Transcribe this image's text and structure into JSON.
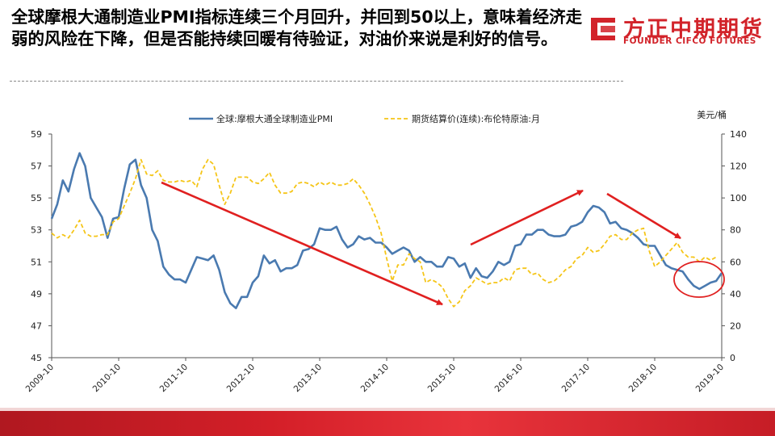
{
  "title": "全球摩根大通制造业PMI指标连续三个月回升，并回到50以上，意味着经济走弱的风险在下降，但是否能持续回暖有待验证，对油价来说是利好的信号。",
  "logo": {
    "cn": "方正中期期货",
    "en": "FOUNDER CIFCO FUTURES"
  },
  "colors": {
    "pmi": "#4a7ab0",
    "brent": "#f5c518",
    "arrow": "#e02020",
    "brand": "#d2232a"
  },
  "chart_data": {
    "type": "line",
    "legend": [
      "全球:摩根大通全球制造业PMI",
      "期货结算价(连续):布伦特原油:月"
    ],
    "legend_position": "top",
    "right_axis_unit": "美元/桶",
    "x_ticks": [
      "2009-10",
      "2010-10",
      "2011-10",
      "2012-10",
      "2013-10",
      "2014-10",
      "2015-10",
      "2016-10",
      "2017-10",
      "2018-10",
      "2019-10"
    ],
    "x_start": "2009-10",
    "y_left": {
      "range": [
        45,
        59
      ],
      "ticks": [
        "45",
        "47",
        "49",
        "51",
        "53",
        "55",
        "57",
        "59"
      ]
    },
    "y_right": {
      "range": [
        0,
        140
      ],
      "ticks": [
        "0",
        "20",
        "40",
        "60",
        "80",
        "100",
        "120",
        "140"
      ]
    },
    "grid": false,
    "series": [
      {
        "name": "全球:摩根大通全球制造业PMI",
        "axis": "left",
        "style": "solid",
        "values": [
          53.7,
          54.6,
          56.1,
          55.4,
          56.8,
          57.8,
          57.0,
          55.0,
          54.4,
          53.8,
          52.5,
          53.7,
          53.8,
          55.6,
          57.1,
          57.4,
          55.8,
          55.0,
          53.0,
          52.3,
          50.7,
          50.2,
          49.9,
          49.9,
          49.7,
          50.5,
          51.3,
          51.2,
          51.1,
          51.4,
          50.5,
          49.1,
          48.4,
          48.1,
          48.8,
          48.8,
          49.7,
          50.1,
          51.4,
          50.9,
          51.1,
          50.4,
          50.6,
          50.6,
          50.8,
          51.7,
          51.8,
          52.1,
          53.1,
          53.0,
          53.0,
          53.2,
          52.4,
          51.9,
          52.1,
          52.6,
          52.4,
          52.5,
          52.2,
          52.2,
          51.9,
          51.5,
          51.7,
          51.9,
          51.7,
          51.0,
          51.3,
          51.0,
          51.0,
          50.7,
          50.7,
          51.3,
          51.2,
          50.7,
          50.9,
          50.0,
          50.6,
          50.1,
          50.0,
          50.4,
          51.0,
          50.8,
          51.0,
          52.0,
          52.1,
          52.7,
          52.7,
          53.0,
          53.0,
          52.7,
          52.6,
          52.6,
          52.7,
          53.2,
          53.3,
          53.5,
          54.1,
          54.5,
          54.4,
          54.1,
          53.4,
          53.5,
          53.1,
          53.0,
          52.8,
          52.5,
          52.1,
          52.0,
          52.0,
          51.4,
          50.8,
          50.6,
          50.5,
          50.4,
          49.9,
          49.5,
          49.3,
          49.5,
          49.7,
          49.8,
          50.3
        ]
      },
      {
        "name": "期货结算价(连续):布伦特原油:月",
        "axis": "right",
        "style": "dashed",
        "values": [
          78,
          75,
          77,
          75,
          80,
          86,
          78,
          76,
          76,
          77,
          77,
          85,
          87,
          95,
          103,
          112,
          124,
          115,
          114,
          117,
          111,
          110,
          110,
          111,
          110,
          111,
          107,
          118,
          124,
          121,
          108,
          96,
          103,
          113,
          113,
          113,
          110,
          109,
          112,
          116,
          108,
          103,
          103,
          104,
          109,
          110,
          109,
          107,
          110,
          108,
          110,
          108,
          108,
          109,
          112,
          108,
          103,
          96,
          88,
          78,
          62,
          48,
          58,
          58,
          65,
          62,
          60,
          47,
          49,
          47,
          44,
          37,
          32,
          35,
          42,
          45,
          50,
          48,
          46,
          47,
          47,
          50,
          48,
          55,
          56,
          56,
          52,
          53,
          49,
          47,
          48,
          51,
          55,
          57,
          62,
          64,
          69,
          66,
          67,
          71,
          76,
          77,
          74,
          74,
          78,
          80,
          81,
          67,
          57,
          60,
          64,
          68,
          72,
          66,
          63,
          63,
          60,
          63,
          61,
          63
        ]
      }
    ]
  }
}
